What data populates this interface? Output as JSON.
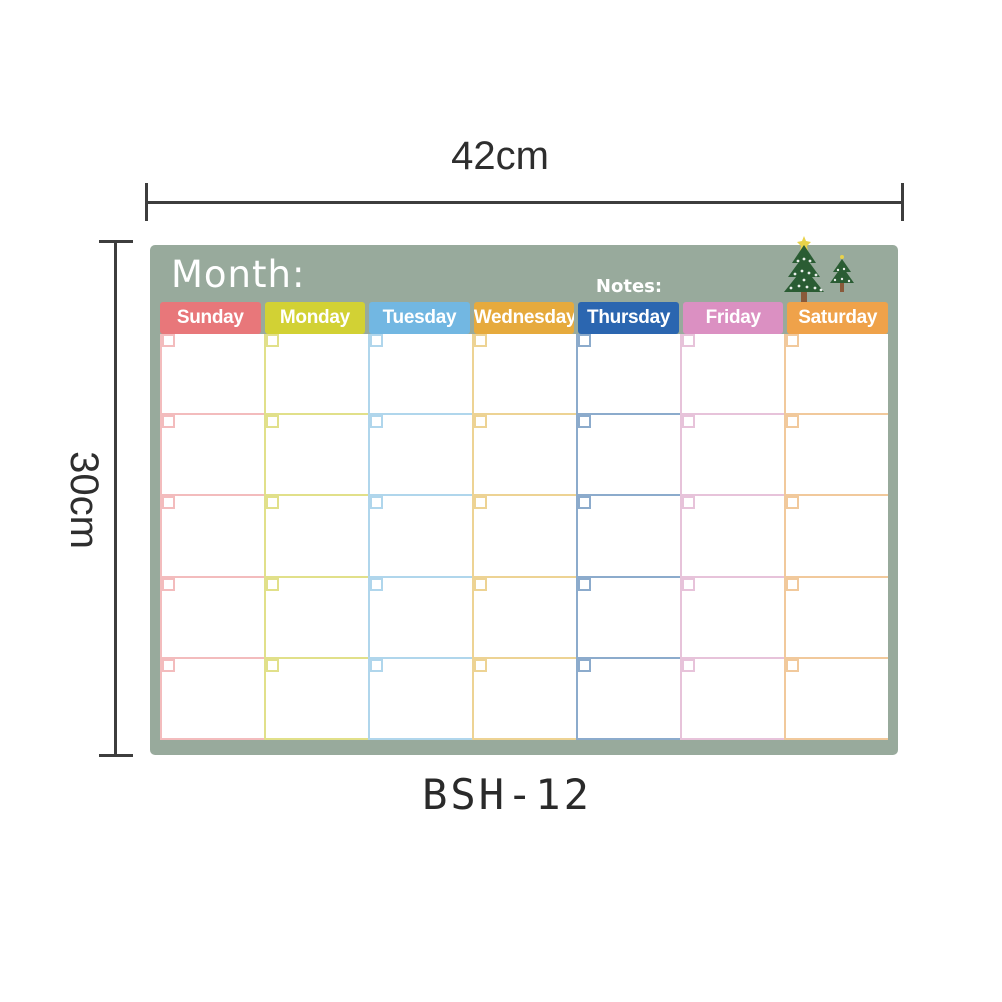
{
  "dimensions": {
    "width_label": "42cm",
    "height_label": "30cm"
  },
  "product_code": "BSH-12",
  "board": {
    "frame_color": "#98aa9c",
    "surface_color": "#ffffff",
    "month_label": "Month:",
    "notes_label": "Notes:",
    "rows": 5,
    "days": [
      {
        "label": "Sunday",
        "header_color": "#e8777a",
        "line_color": "#f3bcbd"
      },
      {
        "label": "Monday",
        "header_color": "#d2d134",
        "line_color": "#e1e08a"
      },
      {
        "label": "Tuesday",
        "header_color": "#72b7e2",
        "line_color": "#b0d6ec"
      },
      {
        "label": "Wednesday",
        "header_color": "#e6aa3d",
        "line_color": "#edd394"
      },
      {
        "label": "Thursday",
        "header_color": "#2b66b0",
        "line_color": "#8cabcc"
      },
      {
        "label": "Friday",
        "header_color": "#db90c2",
        "line_color": "#e7c3da"
      },
      {
        "label": "Saturday",
        "header_color": "#efa24a",
        "line_color": "#f1c99c"
      }
    ],
    "trees": {
      "foliage_color": "#2a5c33",
      "garland_color": "#ffffff",
      "trunk_color": "#8a5a3a",
      "star_color": "#e8d24a"
    }
  }
}
